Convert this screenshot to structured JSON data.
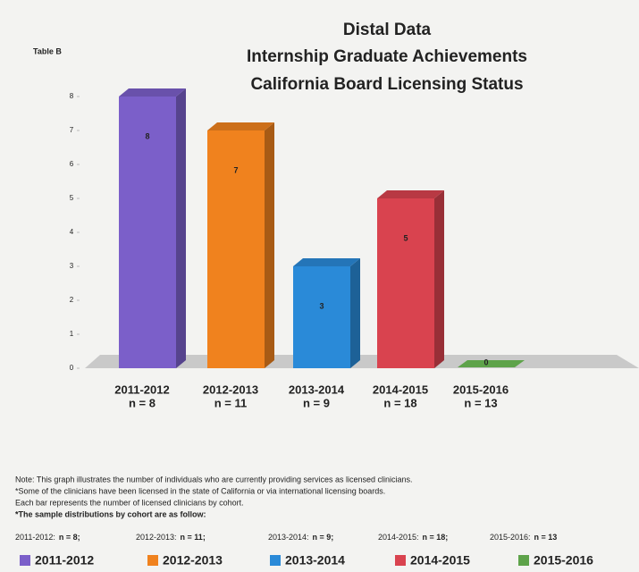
{
  "chart_data": {
    "type": "bar",
    "table_label": "Table B",
    "title": "Distal Data",
    "subtitle": [
      "Internship Graduate Achievements",
      "California Board Licensing Status"
    ],
    "categories": [
      "2011-2012",
      "2012-2013",
      "2013-2014",
      "2014-2015",
      "2015-2016"
    ],
    "category_n": [
      "n = 8",
      "n = 11",
      "n = 9",
      "n = 18",
      "n = 13"
    ],
    "values": [
      8,
      7,
      3,
      5,
      0
    ],
    "colors": [
      "#7b5fc9",
      "#f0821e",
      "#2a8ad8",
      "#d9434f",
      "#5ea34a"
    ],
    "ylim": [
      0,
      8
    ],
    "yticks": [
      0,
      1,
      2,
      3,
      4,
      5,
      6,
      7,
      8
    ],
    "notes": [
      "Note: This graph illustrates the number of individuals who are currently providing services as licensed clinicians.",
      "*Some of the clinicians have been licensed in the state of California or via international licensing boards.",
      "Each bar represents the number of licensed clinicians by cohort.",
      "*The sample distributions by cohort are as follow:"
    ],
    "sample": [
      {
        "cohort": "2011-2012:",
        "n": "n = 8;"
      },
      {
        "cohort": "2012-2013:",
        "n": "n = 11;"
      },
      {
        "cohort": "2013-2014:",
        "n": "n = 9;"
      },
      {
        "cohort": "2014-2015:",
        "n": "n = 18;"
      },
      {
        "cohort": "2015-2016:",
        "n": "n = 13"
      }
    ]
  }
}
